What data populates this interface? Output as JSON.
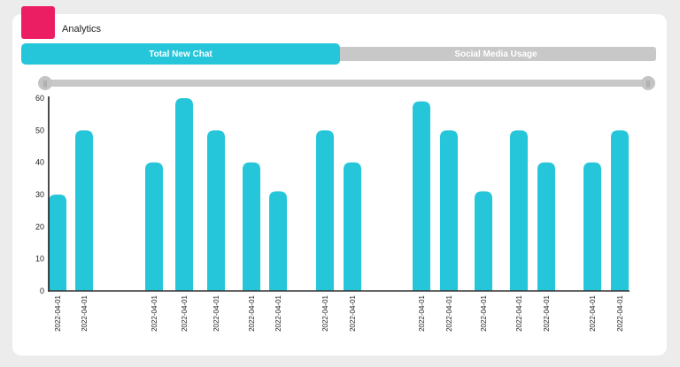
{
  "header": {
    "title": "Analytics"
  },
  "tabs": [
    {
      "label": "Total New Chat"
    },
    {
      "label": "Social Media Usage"
    }
  ],
  "slider": {
    "range": [
      0,
      1
    ]
  },
  "chart_data": {
    "type": "bar",
    "categories": [
      "2022-04-01",
      "2022-04-01",
      "2022-04-01",
      "2022-04-01",
      "2022-04-01",
      "2022-04-01",
      "2022-04-01",
      "2022-04-01",
      "2022-04-01",
      "2022-04-01",
      "2022-04-01",
      "2022-04-01",
      "2022-04-01",
      "2022-04-01",
      "2022-04-01",
      "2022-04-01"
    ],
    "values": [
      30,
      50,
      40,
      60,
      50,
      40,
      31,
      50,
      40,
      59,
      50,
      31,
      50,
      40,
      40,
      50
    ],
    "ylim": [
      0,
      60
    ],
    "yticks": [
      "0",
      "10",
      "20",
      "30",
      "40",
      "50",
      "60"
    ],
    "color": "#26c6da",
    "grid": false
  }
}
